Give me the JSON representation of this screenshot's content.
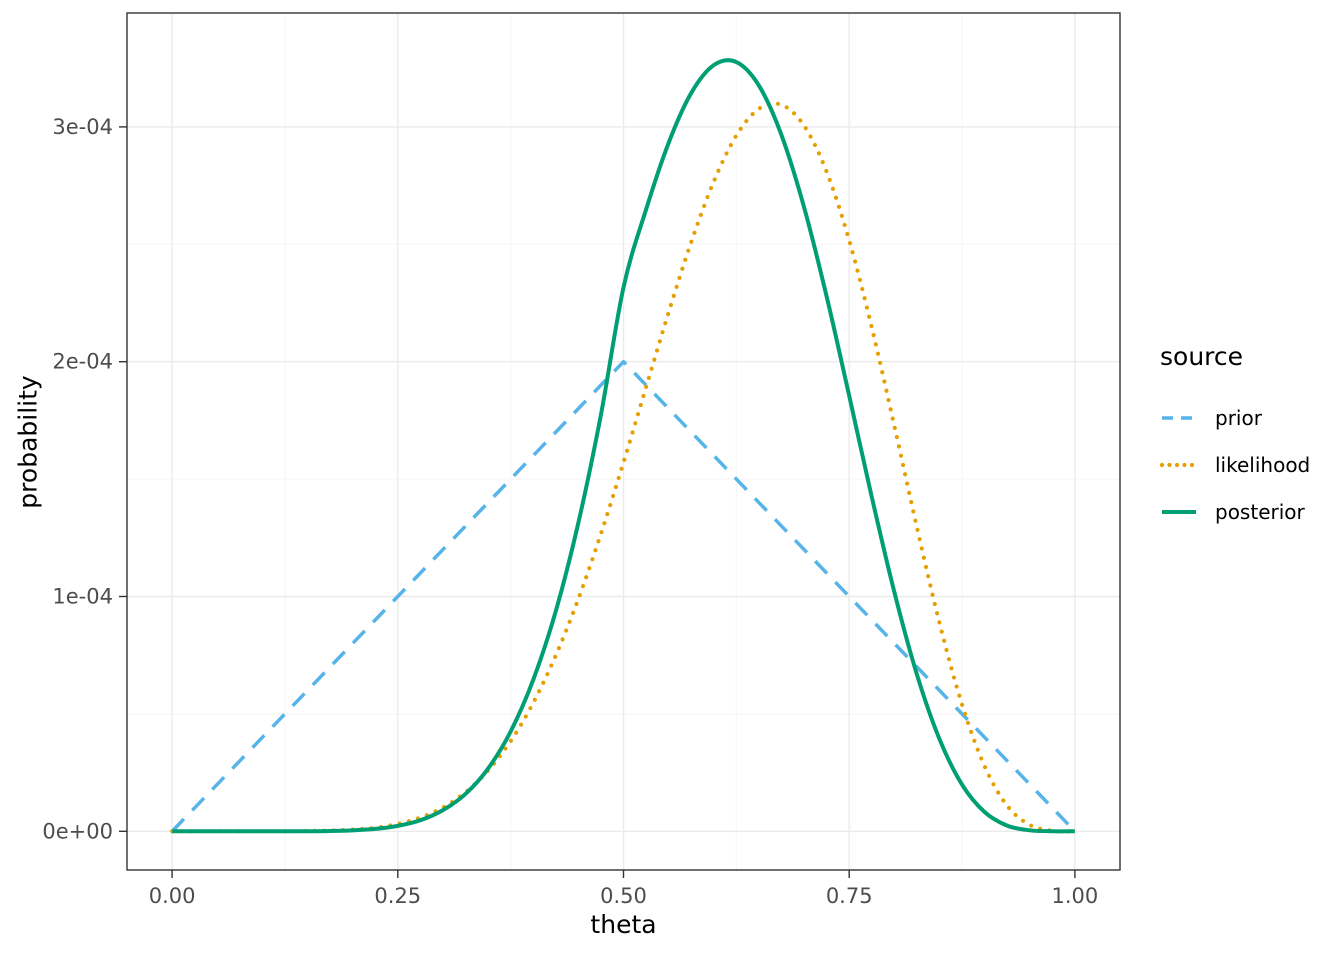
{
  "chart_data": {
    "type": "line",
    "title": "",
    "xlabel": "theta",
    "ylabel": "probability",
    "legend_title": "source",
    "legend_position": "right",
    "grid": true,
    "x_ticks": [
      "0.00",
      "0.25",
      "0.50",
      "0.75",
      "1.00"
    ],
    "x_tick_values": [
      0,
      0.25,
      0.5,
      0.75,
      1
    ],
    "y_ticks": [
      "0e+00",
      "1e-04",
      "2e-04",
      "3e-04"
    ],
    "y_tick_values": [
      0,
      1,
      2,
      3
    ],
    "y_unit": "1e-04",
    "xlim": [
      -0.05,
      1.05
    ],
    "ylim": [
      -0.165,
      3.485
    ],
    "x": [
      0,
      0.025,
      0.05,
      0.075,
      0.1,
      0.125,
      0.15,
      0.175,
      0.2,
      0.225,
      0.25,
      0.275,
      0.3,
      0.325,
      0.35,
      0.375,
      0.4,
      0.425,
      0.45,
      0.475,
      0.5,
      0.525,
      0.55,
      0.575,
      0.6,
      0.625,
      0.65,
      0.675,
      0.7,
      0.725,
      0.75,
      0.775,
      0.8,
      0.825,
      0.85,
      0.875,
      0.9,
      0.925,
      0.95,
      0.975,
      1
    ],
    "series": [
      {
        "name": "prior",
        "color": "#56B4E9",
        "style": "dashed",
        "interpolate": "linear",
        "values": [
          0,
          0.1,
          0.2,
          0.3,
          0.4,
          0.5,
          0.6,
          0.7,
          0.8,
          0.9,
          1,
          1.1,
          1.2,
          1.3,
          1.4,
          1.5,
          1.6,
          1.7,
          1.8,
          1.9,
          2,
          1.9,
          1.8,
          1.7,
          1.6,
          1.5,
          1.4,
          1.3,
          1.2,
          1.1,
          1,
          0.9,
          0.8,
          0.7,
          0.6,
          0.5,
          0.4,
          0.3,
          0.2,
          0.1,
          0
        ]
      },
      {
        "name": "likelihood",
        "color": "#E69F00",
        "style": "dotted",
        "interpolate": "smooth",
        "values": [
          0,
          0,
          0,
          0,
          0,
          0,
          0.001,
          0.003,
          0.007,
          0.015,
          0.031,
          0.058,
          0.101,
          0.166,
          0.259,
          0.384,
          0.547,
          0.749,
          0.99,
          1.267,
          1.571,
          1.891,
          2.21,
          2.509,
          2.767,
          2.963,
          3.077,
          3.094,
          3.005,
          2.809,
          2.517,
          2.146,
          1.727,
          1.295,
          0.888,
          0.54,
          0.277,
          0.109,
          0.027,
          0.002,
          0
        ]
      },
      {
        "name": "posterior",
        "color": "#009E73",
        "style": "solid",
        "interpolate": "smooth",
        "values": [
          0,
          0,
          0,
          0,
          0,
          0,
          0,
          0.001,
          0.004,
          0.01,
          0.023,
          0.047,
          0.09,
          0.159,
          0.267,
          0.425,
          0.645,
          0.938,
          1.314,
          1.774,
          2.316,
          2.648,
          2.932,
          3.144,
          3.263,
          3.276,
          3.176,
          2.965,
          2.658,
          2.278,
          1.855,
          1.424,
          1.019,
          0.668,
          0.393,
          0.199,
          0.082,
          0.024,
          0.004,
          0,
          0
        ]
      }
    ]
  },
  "theme": {
    "background": "#FFFFFF",
    "panel_border": "#333333",
    "grid_major": "#EBEBEB",
    "grid_minor": "#F5F5F5",
    "tick_color": "#333333",
    "tick_label_color": "#4D4D4D",
    "axis_title_color": "#000000"
  }
}
